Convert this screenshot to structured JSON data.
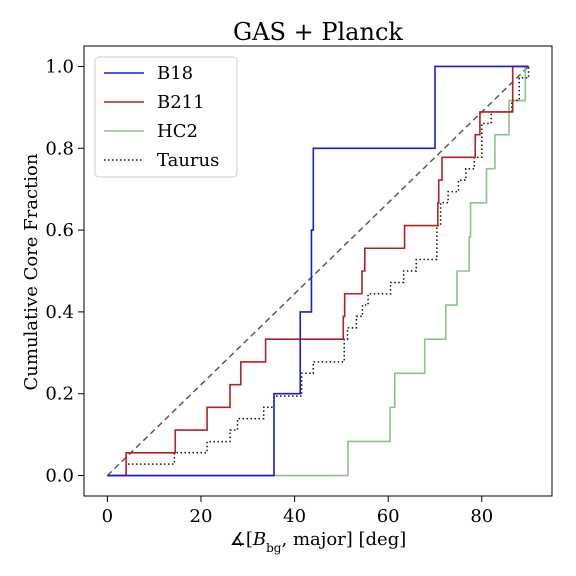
{
  "chart_data": {
    "type": "line",
    "title": "GAS + Planck",
    "xlabel": "∡[B_bg, major] [deg]",
    "xlabel_parts": {
      "prefix": "∡[",
      "B": "B",
      "sub": "bg",
      "suffix": ", major] [deg]"
    },
    "ylabel": "Cumulative Core Fraction",
    "xlim": [
      -5,
      95
    ],
    "ylim": [
      -0.05,
      1.05
    ],
    "xticks": [
      0,
      20,
      40,
      60,
      80
    ],
    "yticks": [
      0.0,
      0.2,
      0.4,
      0.6,
      0.8,
      1.0
    ],
    "xtick_labels": [
      "0",
      "20",
      "40",
      "60",
      "80"
    ],
    "ytick_labels": [
      "0.0",
      "0.2",
      "0.4",
      "0.6",
      "0.8",
      "1.0"
    ],
    "grid": false,
    "legend_position": "top-left",
    "reference_line": {
      "x": [
        0,
        90
      ],
      "y": [
        0,
        1
      ],
      "style": "dashed",
      "color": "#5a5a5a"
    },
    "series": [
      {
        "name": "B18",
        "color": "#1a1adb",
        "style": "solid",
        "step_x": [
          0,
          35.6,
          41.2,
          43.6,
          44.0,
          70.0,
          90.0
        ],
        "step_y": [
          0.0,
          0.2,
          0.4,
          0.6,
          0.8,
          1.0,
          1.0
        ]
      },
      {
        "name": "B211",
        "color": "#b22222",
        "style": "solid",
        "step_x": [
          0,
          4.0,
          14.5,
          21.3,
          26.2,
          28.5,
          33.8,
          50.4,
          50.7,
          54.4,
          55.0,
          63.5,
          70.6,
          70.8,
          71.5,
          78.6,
          79.6,
          86.6,
          90.0
        ],
        "step_y": [
          0.0,
          0.0556,
          0.1111,
          0.1667,
          0.2222,
          0.2778,
          0.3333,
          0.3889,
          0.4444,
          0.5,
          0.5556,
          0.6111,
          0.6667,
          0.7222,
          0.7778,
          0.8333,
          0.8889,
          1.0,
          1.0
        ]
      },
      {
        "name": "HC2",
        "color": "#8fc08f",
        "style": "solid",
        "step_x": [
          0,
          51.4,
          60.4,
          61.4,
          67.8,
          72.3,
          74.7,
          77.3,
          77.6,
          81.0,
          82.8,
          85.8,
          89.3,
          90.0
        ],
        "step_y": [
          0.0,
          0.0833,
          0.1667,
          0.25,
          0.3333,
          0.4167,
          0.5,
          0.5833,
          0.6667,
          0.75,
          0.8333,
          0.9167,
          1.0,
          1.0
        ]
      },
      {
        "name": "Taurus",
        "color": "#111111",
        "style": "dotted",
        "step_x": [
          0,
          4.0,
          14.3,
          21.3,
          26.2,
          27.8,
          33.4,
          35.6,
          41.5,
          44.0,
          50.6,
          51.3,
          53.2,
          54.5,
          55.7,
          60.5,
          63.3,
          66.0,
          70.4,
          71.2,
          72.8,
          75.0,
          76.6,
          78.4,
          80.0,
          82.0,
          86.4,
          88.0,
          90.0
        ],
        "step_y": [
          0.0,
          0.028,
          0.056,
          0.083,
          0.111,
          0.139,
          0.167,
          0.194,
          0.25,
          0.278,
          0.333,
          0.361,
          0.389,
          0.417,
          0.444,
          0.472,
          0.5,
          0.528,
          0.611,
          0.667,
          0.694,
          0.722,
          0.75,
          0.778,
          0.861,
          0.889,
          0.917,
          0.972,
          1.0
        ]
      }
    ]
  }
}
